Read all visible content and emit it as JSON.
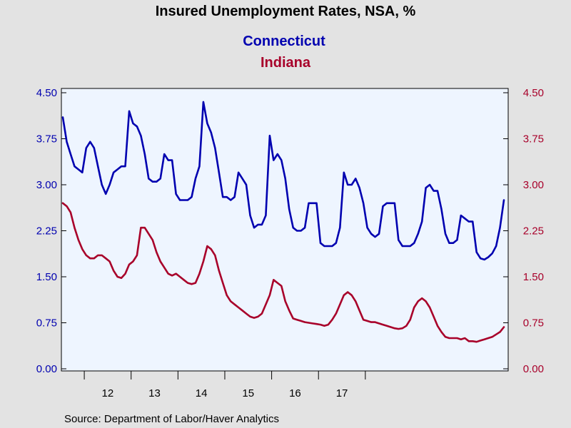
{
  "chart_data": {
    "type": "line",
    "title": "Insured Unemployment Rates, NSA, %",
    "source": "Source:  Department of Labor/Haver Analytics",
    "x_unit": "month",
    "x_start": "2011-07",
    "x_tick_labels": [
      {
        "label": "12",
        "year": 2012
      },
      {
        "label": "13",
        "year": 2013
      },
      {
        "label": "14",
        "year": 2014
      },
      {
        "label": "15",
        "year": 2015
      },
      {
        "label": "16",
        "year": 2016
      },
      {
        "label": "17",
        "year": 2017
      }
    ],
    "y_left": {
      "range": [
        0,
        4.5
      ],
      "ticks": [
        "0.00",
        "0.75",
        "1.50",
        "2.25",
        "3.00",
        "3.75",
        "4.50"
      ]
    },
    "y_right": {
      "range": [
        0,
        4.5
      ],
      "ticks": [
        "0.00",
        "0.75",
        "1.50",
        "2.25",
        "3.00",
        "3.75",
        "4.50"
      ]
    },
    "grid": false,
    "series": [
      {
        "name": "Connecticut",
        "color": "#0000B0",
        "axis": "left",
        "values": [
          4.1,
          3.7,
          3.5,
          3.3,
          3.25,
          3.2,
          3.6,
          3.7,
          3.6,
          3.3,
          3.0,
          2.85,
          3.0,
          3.2,
          3.25,
          3.3,
          3.3,
          4.2,
          4.0,
          3.95,
          3.8,
          3.5,
          3.1,
          3.05,
          3.05,
          3.1,
          3.5,
          3.4,
          3.4,
          2.85,
          2.75,
          2.75,
          2.75,
          2.8,
          3.1,
          3.3,
          4.35,
          4.0,
          3.85,
          3.6,
          3.2,
          2.8,
          2.8,
          2.75,
          2.8,
          3.2,
          3.1,
          3.0,
          2.5,
          2.3,
          2.35,
          2.35,
          2.5,
          3.8,
          3.4,
          3.5,
          3.4,
          3.1,
          2.6,
          2.3,
          2.25,
          2.25,
          2.3,
          2.7,
          2.7,
          2.7,
          2.05,
          2.0,
          2.0,
          2.0,
          2.05,
          2.3,
          3.2,
          3.0,
          3.0,
          3.1,
          2.95,
          2.7,
          2.3,
          2.2,
          2.15,
          2.2,
          2.65,
          2.7,
          2.7,
          2.7,
          2.1,
          2.0,
          2.0,
          2.0,
          2.05,
          2.2,
          2.4,
          2.95,
          3.0,
          2.9,
          2.9,
          2.6,
          2.2,
          2.05,
          2.05,
          2.1,
          2.5,
          2.45,
          2.4,
          2.4,
          1.9,
          1.8,
          1.78,
          1.82,
          1.88,
          2.0,
          2.3,
          2.75
        ]
      },
      {
        "name": "Indiana",
        "color": "#A8002A",
        "axis": "right",
        "values": [
          2.7,
          2.65,
          2.55,
          2.3,
          2.1,
          1.95,
          1.85,
          1.8,
          1.8,
          1.85,
          1.85,
          1.8,
          1.75,
          1.6,
          1.5,
          1.48,
          1.55,
          1.7,
          1.75,
          1.85,
          2.3,
          2.3,
          2.2,
          2.1,
          1.9,
          1.75,
          1.65,
          1.55,
          1.52,
          1.55,
          1.5,
          1.45,
          1.4,
          1.38,
          1.4,
          1.55,
          1.75,
          2.0,
          1.95,
          1.85,
          1.6,
          1.4,
          1.2,
          1.1,
          1.05,
          1.0,
          0.95,
          0.9,
          0.85,
          0.83,
          0.85,
          0.9,
          1.05,
          1.2,
          1.45,
          1.4,
          1.35,
          1.1,
          0.95,
          0.82,
          0.8,
          0.78,
          0.76,
          0.75,
          0.74,
          0.73,
          0.72,
          0.7,
          0.72,
          0.8,
          0.9,
          1.05,
          1.2,
          1.25,
          1.2,
          1.1,
          0.95,
          0.8,
          0.78,
          0.76,
          0.76,
          0.74,
          0.72,
          0.7,
          0.68,
          0.66,
          0.65,
          0.66,
          0.7,
          0.8,
          1.0,
          1.1,
          1.15,
          1.1,
          1.0,
          0.85,
          0.7,
          0.6,
          0.52,
          0.5,
          0.5,
          0.5,
          0.48,
          0.5,
          0.45,
          0.45,
          0.44,
          0.46,
          0.48,
          0.5,
          0.52,
          0.56,
          0.6,
          0.68
        ]
      }
    ]
  }
}
